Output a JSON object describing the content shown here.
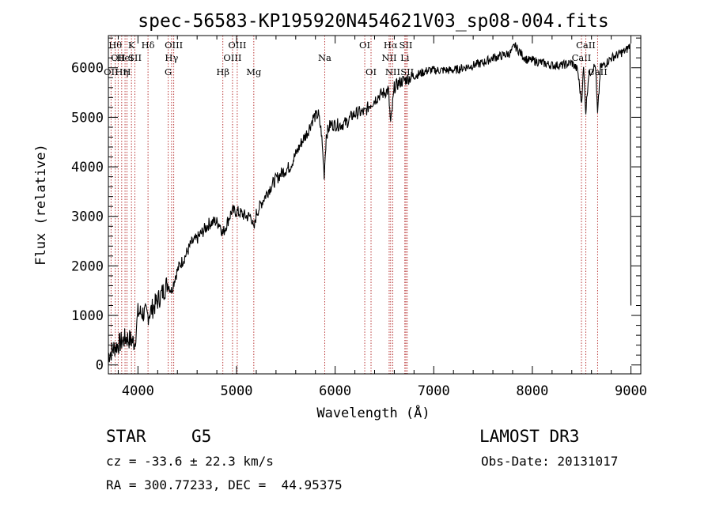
{
  "chart_data": {
    "type": "line",
    "title": "spec-56583-KP195920N454621V03_sp08-004.fits",
    "xlabel": "Wavelength (Å)",
    "ylabel": "Flux (relative)",
    "xlim": [
      3700,
      9100
    ],
    "ylim": [
      -180,
      6650
    ],
    "xticks": [
      4000,
      5000,
      6000,
      7000,
      8000,
      9000
    ],
    "yticks": [
      0,
      1000,
      2000,
      3000,
      4000,
      5000,
      6000
    ],
    "series": [
      {
        "name": "flux",
        "x": [
          3700,
          3760,
          3820,
          3880,
          3930,
          3968,
          4000,
          4050,
          4100,
          4150,
          4200,
          4260,
          4300,
          4340,
          4380,
          4420,
          4480,
          4540,
          4600,
          4660,
          4720,
          4780,
          4830,
          4861,
          4900,
          4950,
          5000,
          5050,
          5100,
          5150,
          5175,
          5200,
          5260,
          5330,
          5400,
          5470,
          5540,
          5600,
          5660,
          5720,
          5780,
          5830,
          5860,
          5889,
          5910,
          5950,
          6000,
          6060,
          6120,
          6180,
          6240,
          6300,
          6350,
          6400,
          6450,
          6500,
          6540,
          6563,
          6600,
          6650,
          6700,
          6760,
          6820,
          6880,
          6950,
          7020,
          7100,
          7200,
          7300,
          7400,
          7500,
          7600,
          7700,
          7780,
          7820,
          7860,
          7900,
          7950,
          8000,
          8100,
          8200,
          8300,
          8400,
          8460,
          8498,
          8520,
          8542,
          8570,
          8600,
          8640,
          8662,
          8690,
          8750,
          8800,
          8850,
          8900,
          8950,
          8990,
          9000
        ],
        "values": [
          200,
          350,
          450,
          550,
          500,
          450,
          1050,
          1050,
          1000,
          1150,
          1300,
          1500,
          1650,
          1500,
          1800,
          2000,
          2200,
          2450,
          2550,
          2700,
          2850,
          2900,
          2850,
          2650,
          2850,
          3100,
          3100,
          3050,
          3000,
          3000,
          2700,
          3050,
          3300,
          3550,
          3750,
          3900,
          4000,
          4250,
          4500,
          4700,
          5000,
          5050,
          4700,
          3850,
          4650,
          4850,
          4850,
          4850,
          4900,
          5050,
          5100,
          5100,
          5250,
          5350,
          5450,
          5500,
          5550,
          4850,
          5600,
          5700,
          5750,
          5800,
          5850,
          5900,
          5950,
          5950,
          5950,
          5950,
          6000,
          6050,
          6100,
          6200,
          6250,
          6300,
          6450,
          6350,
          6250,
          6150,
          6150,
          6100,
          6050,
          6050,
          6100,
          5950,
          5300,
          6000,
          5100,
          5850,
          5950,
          6050,
          5050,
          6000,
          6100,
          6200,
          6250,
          6300,
          6350,
          6450,
          1200
        ]
      }
    ],
    "lines": [
      {
        "wl": 3770,
        "label": "Hθ",
        "row": 1
      },
      {
        "wl": 3799,
        "label": "OII",
        "row": 2
      },
      {
        "wl": 3727,
        "label": "OII",
        "row": 3
      },
      {
        "wl": 3835,
        "label": "Hη",
        "row": 3
      },
      {
        "wl": 3869,
        "label": "HeI",
        "row": 2
      },
      {
        "wl": 3889,
        "label": "H",
        "row": 3
      },
      {
        "wl": 3934,
        "label": "K",
        "row": 1
      },
      {
        "wl": 3969,
        "label": "SII",
        "row": 2
      },
      {
        "wl": 4102,
        "label": "Hδ",
        "row": 1
      },
      {
        "wl": 4307,
        "label": "G",
        "row": 3
      },
      {
        "wl": 4341,
        "label": "Hγ",
        "row": 2
      },
      {
        "wl": 4363,
        "label": "OIII",
        "row": 1
      },
      {
        "wl": 4861,
        "label": "Hβ",
        "row": 3
      },
      {
        "wl": 4959,
        "label": "OIII",
        "row": 2
      },
      {
        "wl": 5007,
        "label": "OIII",
        "row": 1
      },
      {
        "wl": 5175,
        "label": "Mg",
        "row": 3
      },
      {
        "wl": 5894,
        "label": "Na",
        "row": 2
      },
      {
        "wl": 6300,
        "label": "OI",
        "row": 1
      },
      {
        "wl": 6364,
        "label": "OI",
        "row": 3
      },
      {
        "wl": 6548,
        "label": "NII",
        "row": 2
      },
      {
        "wl": 6563,
        "label": "Hα",
        "row": 1
      },
      {
        "wl": 6584,
        "label": "NII",
        "row": 3
      },
      {
        "wl": 6707,
        "label": "Li",
        "row": 2
      },
      {
        "wl": 6717,
        "label": "SII",
        "row": 1
      },
      {
        "wl": 6731,
        "label": "SII",
        "row": 3
      },
      {
        "wl": 8498,
        "label": "CaII",
        "row": 2
      },
      {
        "wl": 8542,
        "label": "CaII",
        "row": 1
      },
      {
        "wl": 8662,
        "label": "CaII",
        "row": 3
      }
    ]
  },
  "info": {
    "object_class": "STAR",
    "subclass": "G5",
    "survey": "LAMOST DR3",
    "cz": "cz = -33.6 ± 22.3 km/s",
    "obs_date": "Obs-Date: 20131017",
    "coords": "RA = 300.77233, DEC =  44.95375"
  }
}
